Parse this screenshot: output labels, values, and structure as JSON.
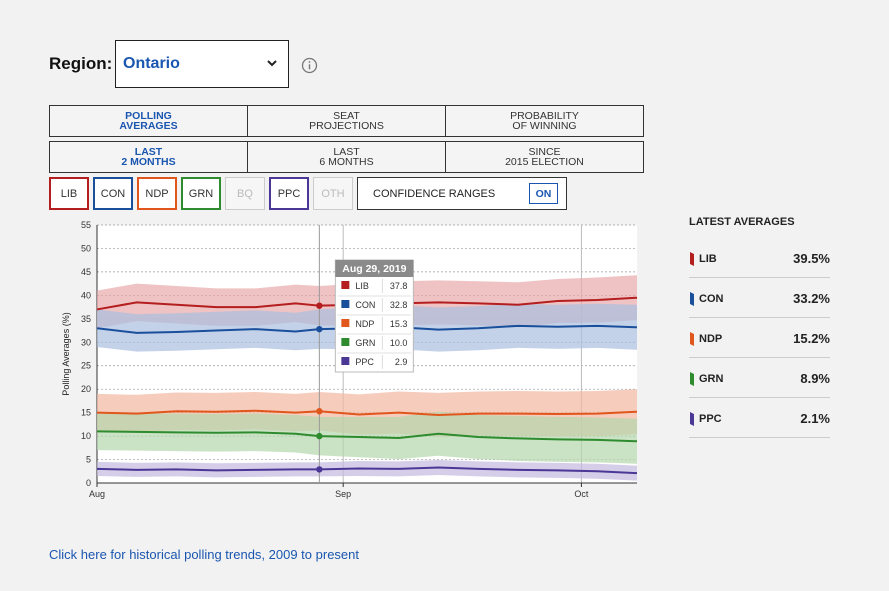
{
  "region": {
    "label": "Region:",
    "value": "Ontario",
    "chevron_icon": "chevron-down-icon",
    "info_icon": "info-icon"
  },
  "metric_tabs": [
    {
      "label": "POLLING\nAVERAGES",
      "active": true
    },
    {
      "label": "SEAT\nPROJECTIONS",
      "active": false
    },
    {
      "label": "PROBABILITY\nOF WINNING",
      "active": false
    }
  ],
  "period_tabs": [
    {
      "label": "LAST\n2 MONTHS",
      "active": true
    },
    {
      "label": "LAST\n6 MONTHS",
      "active": false
    },
    {
      "label": "SINCE\n2015 ELECTION",
      "active": false
    }
  ],
  "parties": [
    {
      "label": "LIB",
      "color": "#b41e1e",
      "active": true
    },
    {
      "label": "CON",
      "color": "#1a4f9c",
      "active": true
    },
    {
      "label": "NDP",
      "color": "#e0561c",
      "active": true
    },
    {
      "label": "GRN",
      "color": "#2e8b2e",
      "active": true
    },
    {
      "label": "BQ",
      "color": "#bbbbbb",
      "active": false
    },
    {
      "label": "PPC",
      "color": "#4b3896",
      "active": true
    },
    {
      "label": "OTH",
      "color": "#bbbbbb",
      "active": false
    }
  ],
  "confidence": {
    "label": "CONFIDENCE RANGES",
    "toggle": "ON"
  },
  "latest": {
    "title": "LATEST AVERAGES",
    "rows": [
      {
        "name": "LIB",
        "value": "39.5%",
        "color": "#b41e1e"
      },
      {
        "name": "CON",
        "value": "33.2%",
        "color": "#1a4f9c"
      },
      {
        "name": "NDP",
        "value": "15.2%",
        "color": "#e0561c"
      },
      {
        "name": "GRN",
        "value": "8.9%",
        "color": "#2e8b2e"
      },
      {
        "name": "PPC",
        "value": "2.1%",
        "color": "#4b3896"
      }
    ]
  },
  "historical_link": "Click here for historical polling trends, 2009 to present",
  "chart_data": {
    "type": "line",
    "ylabel": "Polling Averages (%)",
    "xlabel": "",
    "ylim": [
      0,
      55
    ],
    "yticks": [
      0,
      5,
      10,
      15,
      20,
      25,
      30,
      35,
      40,
      45,
      50,
      55
    ],
    "xlim": [
      "2019-08-01",
      "2019-10-08"
    ],
    "xticks": [
      {
        "date": "2019-08-01",
        "label": "Aug"
      },
      {
        "date": "2019-09-01",
        "label": "Sep"
      },
      {
        "date": "2019-10-01",
        "label": "Oct"
      }
    ],
    "x": [
      "2019-08-01",
      "2019-08-06",
      "2019-08-11",
      "2019-08-16",
      "2019-08-21",
      "2019-08-26",
      "2019-08-29",
      "2019-09-03",
      "2019-09-08",
      "2019-09-13",
      "2019-09-18",
      "2019-09-23",
      "2019-09-28",
      "2019-10-03",
      "2019-10-08"
    ],
    "series": [
      {
        "name": "LIB",
        "color": "#b41e1e",
        "band_color": "#e8a9a9",
        "values": [
          37.0,
          38.5,
          38.0,
          37.5,
          37.5,
          38.3,
          37.8,
          38.0,
          38.3,
          38.5,
          38.3,
          38.0,
          38.8,
          39.0,
          39.5
        ],
        "upper": [
          41.0,
          42.5,
          42.0,
          41.5,
          41.5,
          42.3,
          42.0,
          42.5,
          43.0,
          43.2,
          43.0,
          42.8,
          43.5,
          43.8,
          44.3
        ],
        "lower": [
          33.0,
          34.5,
          34.0,
          33.5,
          33.5,
          34.3,
          33.6,
          33.5,
          33.6,
          33.8,
          33.6,
          33.2,
          34.1,
          34.2,
          34.7
        ]
      },
      {
        "name": "CON",
        "color": "#1a4f9c",
        "band_color": "#a9bfe0",
        "values": [
          33.0,
          32.0,
          32.2,
          32.5,
          32.8,
          32.3,
          32.8,
          33.0,
          33.2,
          32.7,
          33.0,
          33.5,
          33.3,
          33.5,
          33.2
        ],
        "upper": [
          37.0,
          36.0,
          36.2,
          36.5,
          36.8,
          36.3,
          37.0,
          37.5,
          37.9,
          37.4,
          37.7,
          38.2,
          38.0,
          38.2,
          38.0
        ],
        "lower": [
          29.0,
          28.0,
          28.2,
          28.5,
          28.8,
          28.3,
          28.6,
          28.5,
          28.5,
          28.0,
          28.3,
          28.8,
          28.6,
          28.8,
          28.4
        ]
      },
      {
        "name": "NDP",
        "color": "#e0561c",
        "band_color": "#f2b8a0",
        "values": [
          15.0,
          14.8,
          15.3,
          15.2,
          15.4,
          15.0,
          15.3,
          14.6,
          15.0,
          14.5,
          14.8,
          14.8,
          14.7,
          14.8,
          15.2
        ],
        "upper": [
          19.0,
          18.8,
          19.3,
          19.2,
          19.4,
          19.0,
          19.4,
          18.9,
          19.5,
          19.2,
          19.5,
          19.6,
          19.5,
          19.6,
          20.0
        ],
        "lower": [
          11.0,
          10.8,
          11.3,
          11.2,
          11.4,
          11.0,
          11.2,
          10.3,
          10.5,
          9.8,
          10.1,
          10.0,
          9.9,
          10.0,
          10.4
        ]
      },
      {
        "name": "GRN",
        "color": "#2e8b2e",
        "band_color": "#b5d7ad",
        "values": [
          11.0,
          10.9,
          10.8,
          10.7,
          10.8,
          10.5,
          10.0,
          9.8,
          9.6,
          10.5,
          9.8,
          9.5,
          9.3,
          9.2,
          8.9
        ],
        "upper": [
          15.0,
          14.9,
          14.8,
          14.7,
          14.8,
          14.5,
          14.1,
          14.1,
          14.1,
          15.2,
          14.5,
          14.3,
          14.1,
          14.0,
          13.7
        ],
        "lower": [
          7.0,
          6.9,
          6.8,
          6.7,
          6.8,
          6.5,
          5.9,
          5.5,
          5.1,
          5.8,
          5.1,
          4.7,
          4.5,
          4.4,
          4.1
        ]
      },
      {
        "name": "PPC",
        "color": "#4b3896",
        "band_color": "#c2b9de",
        "values": [
          3.0,
          2.8,
          2.9,
          2.7,
          2.8,
          2.9,
          2.9,
          3.1,
          3.0,
          3.3,
          3.0,
          2.8,
          2.7,
          2.5,
          2.1
        ],
        "upper": [
          4.5,
          4.3,
          4.4,
          4.2,
          4.3,
          4.4,
          4.4,
          4.7,
          4.6,
          4.9,
          4.6,
          4.4,
          4.3,
          4.1,
          3.7
        ],
        "lower": [
          1.5,
          1.3,
          1.4,
          1.2,
          1.3,
          1.4,
          1.4,
          1.5,
          1.4,
          1.7,
          1.4,
          1.2,
          1.1,
          0.9,
          0.5
        ]
      }
    ],
    "tooltip": {
      "date": "2019-08-29",
      "title": "Aug 29, 2019",
      "rows": [
        {
          "name": "LIB",
          "value": "37.8",
          "color": "#b41e1e"
        },
        {
          "name": "CON",
          "value": "32.8",
          "color": "#1a4f9c"
        },
        {
          "name": "NDP",
          "value": "15.3",
          "color": "#e0561c"
        },
        {
          "name": "GRN",
          "value": "10.0",
          "color": "#2e8b2e"
        },
        {
          "name": "PPC",
          "value": "2.9",
          "color": "#4b3896"
        }
      ]
    }
  }
}
